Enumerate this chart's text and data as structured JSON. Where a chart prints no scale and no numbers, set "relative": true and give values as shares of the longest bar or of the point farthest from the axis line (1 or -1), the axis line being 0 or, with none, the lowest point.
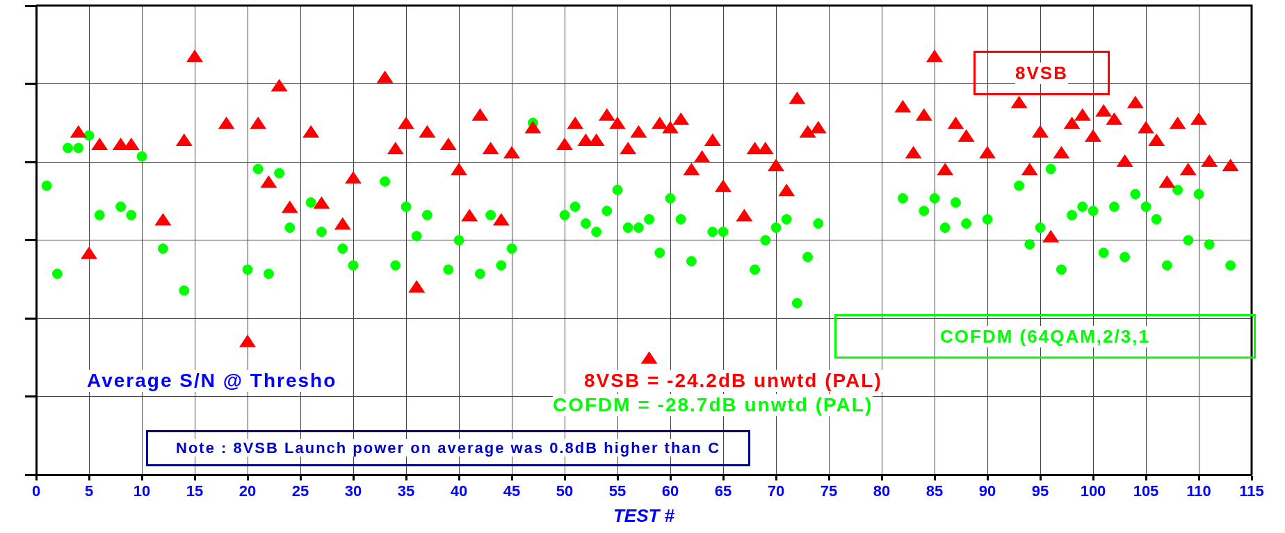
{
  "chart_data": {
    "type": "scatter",
    "relative": true,
    "xlabel": "TEST #",
    "xlim": [
      0,
      115
    ],
    "xticks": [
      0,
      5,
      10,
      15,
      20,
      25,
      30,
      35,
      40,
      45,
      50,
      55,
      60,
      65,
      70,
      75,
      80,
      85,
      90,
      95,
      100,
      105,
      110,
      115
    ],
    "grid": true,
    "legend": false,
    "series": [
      {
        "name": "8VSB",
        "color": "#ff0000",
        "marker": "triangle",
        "x": [
          4,
          5,
          6,
          8,
          9,
          12,
          14,
          15,
          18,
          20,
          21,
          22,
          23,
          24,
          26,
          27,
          29,
          30,
          33,
          34,
          35,
          36,
          37,
          39,
          40,
          41,
          42,
          43,
          44,
          45,
          47,
          50,
          51,
          52,
          53,
          54,
          55,
          56,
          57,
          58,
          59,
          60,
          61,
          62,
          63,
          64,
          65,
          67,
          68,
          69,
          70,
          71,
          72,
          73,
          74,
          82,
          83,
          84,
          85,
          86,
          87,
          88,
          90,
          93,
          94,
          95,
          96,
          97,
          98,
          99,
          100,
          101,
          102,
          103,
          104,
          105,
          106,
          107,
          108,
          109,
          110,
          111,
          113
        ],
        "values": [
          0.82,
          0.53,
          0.79,
          0.79,
          0.79,
          0.61,
          0.8,
          1,
          0.84,
          0.32,
          0.84,
          0.7,
          0.93,
          0.64,
          0.82,
          0.65,
          0.6,
          0.71,
          0.95,
          0.78,
          0.84,
          0.45,
          0.82,
          0.79,
          0.73,
          0.62,
          0.86,
          0.78,
          0.61,
          0.77,
          0.83,
          0.79,
          0.84,
          0.8,
          0.8,
          0.86,
          0.84,
          0.78,
          0.82,
          0.28,
          0.84,
          0.83,
          0.85,
          0.73,
          0.76,
          0.8,
          0.69,
          0.62,
          0.78,
          0.78,
          0.74,
          0.68,
          0.9,
          0.82,
          0.83,
          0.88,
          0.77,
          0.86,
          1,
          0.73,
          0.84,
          0.81,
          0.77,
          0.89,
          0.73,
          0.82,
          0.57,
          0.77,
          0.84,
          0.86,
          0.81,
          0.87,
          0.85,
          0.75,
          0.89,
          0.83,
          0.8,
          0.7,
          0.84,
          0.73,
          0.85,
          0.75,
          0.74
        ]
      },
      {
        "name": "COFDM (64QAM,2/3,1",
        "color": "#00ff00",
        "marker": "circle",
        "x": [
          1,
          2,
          3,
          4,
          5,
          6,
          8,
          9,
          10,
          12,
          14,
          20,
          21,
          22,
          23,
          24,
          26,
          27,
          29,
          30,
          33,
          34,
          35,
          36,
          37,
          39,
          40,
          42,
          43,
          44,
          45,
          47,
          50,
          51,
          52,
          53,
          54,
          55,
          56,
          57,
          58,
          59,
          60,
          61,
          62,
          64,
          65,
          68,
          69,
          70,
          71,
          72,
          73,
          74,
          82,
          84,
          85,
          86,
          87,
          88,
          90,
          93,
          94,
          95,
          96,
          97,
          98,
          99,
          100,
          101,
          102,
          103,
          104,
          105,
          106,
          107,
          108,
          109,
          110,
          111,
          113
        ],
        "values": [
          0.69,
          0.48,
          0.78,
          0.78,
          0.81,
          0.62,
          0.64,
          0.62,
          0.76,
          0.54,
          0.44,
          0.49,
          0.73,
          0.48,
          0.72,
          0.59,
          0.65,
          0.58,
          0.54,
          0.5,
          0.7,
          0.5,
          0.64,
          0.57,
          0.62,
          0.49,
          0.56,
          0.48,
          0.62,
          0.5,
          0.54,
          0.84,
          0.62,
          0.64,
          0.6,
          0.58,
          0.63,
          0.68,
          0.59,
          0.59,
          0.61,
          0.53,
          0.66,
          0.61,
          0.51,
          0.58,
          0.58,
          0.49,
          0.56,
          0.59,
          0.61,
          0.41,
          0.52,
          0.6,
          0.66,
          0.63,
          0.66,
          0.59,
          0.65,
          0.6,
          0.61,
          0.69,
          0.55,
          0.59,
          0.73,
          0.49,
          0.62,
          0.64,
          0.63,
          0.53,
          0.64,
          0.52,
          0.67,
          0.64,
          0.61,
          0.5,
          0.68,
          0.56,
          0.67,
          0.55,
          0.5
        ]
      }
    ],
    "annotations": [
      "Average S/N @ Thresho",
      "8VSB = -24.2dB unwtd (PAL)",
      "COFDM = -28.7dB unwtd (PAL)",
      "Note : 8VSB Launch power on average was 0.8dB higher than C"
    ]
  }
}
